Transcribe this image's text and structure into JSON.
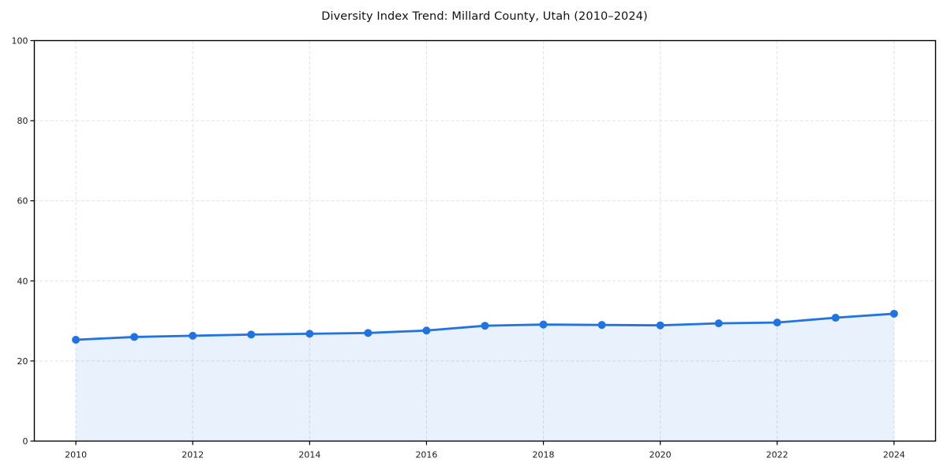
{
  "chart_data": {
    "type": "line",
    "title": "Diversity Index Trend: Millard County, Utah (2010–2024)",
    "xlabel": "",
    "ylabel": "",
    "x": [
      2010,
      2011,
      2012,
      2013,
      2014,
      2015,
      2016,
      2017,
      2018,
      2019,
      2020,
      2021,
      2022,
      2023,
      2024
    ],
    "series": [
      {
        "name": "Diversity Index",
        "values": [
          25.3,
          26.0,
          26.3,
          26.6,
          26.8,
          27.0,
          27.6,
          28.8,
          29.1,
          29.0,
          28.9,
          29.4,
          29.6,
          30.8,
          31.8
        ]
      }
    ],
    "ylim": [
      0,
      100
    ],
    "yticks": [
      0,
      20,
      40,
      60,
      80,
      100
    ],
    "xticks": [
      2010,
      2012,
      2014,
      2016,
      2018,
      2020,
      2022,
      2024
    ],
    "grid": true,
    "grid_style": "dashed",
    "legend": "none",
    "marker": "circle",
    "area_fill": true,
    "line_color": "#2273e2",
    "fill_opacity": 0.1,
    "grid_color": "#e0e0e0",
    "axis_color": "#000000",
    "background_color": "#ffffff"
  }
}
